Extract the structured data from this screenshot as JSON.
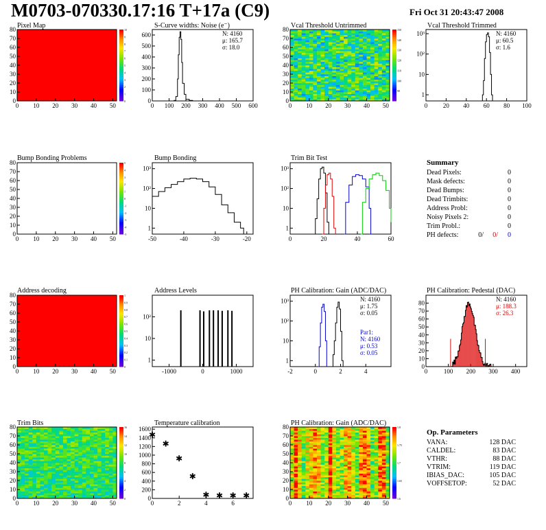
{
  "header": {
    "title": "M0703-070330.17:16 T+17a (C9)",
    "date": "Fri Oct 31 20:43:47 2008"
  },
  "summary": {
    "heading": "Summary",
    "rows": [
      {
        "label": "Dead Pixels:",
        "value": "0"
      },
      {
        "label": "Mask defects:",
        "value": "0"
      },
      {
        "label": "Dead Bumps:",
        "value": "0"
      },
      {
        "label": "Dead Trimbits:",
        "value": "0"
      },
      {
        "label": "Address Probl:",
        "value": "0"
      },
      {
        "label": "Noisy Pixels 2:",
        "value": "0"
      },
      {
        "label": "Trim Probl.:",
        "value": "0"
      }
    ],
    "ph_defects": {
      "label": "PH defects:",
      "values": [
        "0/",
        "0/",
        "0"
      ],
      "colors": [
        "#000000",
        "#cc0000",
        "#0000cc"
      ]
    }
  },
  "op_params": {
    "heading": "Op. Parameters",
    "rows": [
      {
        "label": "VANA:",
        "value": "128 DAC"
      },
      {
        "label": "CALDEL:",
        "value": "83 DAC"
      },
      {
        "label": "VTHR:",
        "value": "88 DAC"
      },
      {
        "label": "VTRIM:",
        "value": "119 DAC"
      },
      {
        "label": "IBIAS_DAC:",
        "value": "105 DAC"
      },
      {
        "label": "VOFFSETOP:",
        "value": "52 DAC"
      }
    ]
  },
  "chart_data": [
    {
      "id": "pixel-map",
      "type": "heatmap",
      "title": "Pixel Map",
      "fill": "uniform-red",
      "xlim": [
        0,
        52
      ],
      "ylim": [
        0,
        80
      ],
      "xticks": [
        0,
        10,
        20,
        30,
        40,
        50
      ],
      "yticks": [
        0,
        10,
        20,
        30,
        40,
        50,
        60,
        70,
        80
      ],
      "zlim": [
        0,
        10
      ],
      "zticks": [
        0,
        1,
        2,
        3,
        4,
        5,
        6,
        7,
        8,
        9,
        10
      ]
    },
    {
      "id": "scurve-noise",
      "type": "histogram",
      "title": "S-Curve widths: Noise (e⁻)",
      "log": false,
      "xlim": [
        0,
        600
      ],
      "ylim": [
        0,
        650
      ],
      "xticks": [
        0,
        100,
        200,
        300,
        400,
        500,
        600
      ],
      "yticks": [
        0,
        100,
        200,
        300,
        400,
        500,
        600
      ],
      "stats": [
        "N: 4160",
        "μ: 165.7",
        "σ: 18.0"
      ],
      "series": [
        {
          "color": "#000000",
          "points": [
            [
              120,
              0
            ],
            [
              130,
              5
            ],
            [
              140,
              40
            ],
            [
              150,
              200
            ],
            [
              155,
              420
            ],
            [
              160,
              580
            ],
            [
              165,
              630
            ],
            [
              170,
              560
            ],
            [
              175,
              350
            ],
            [
              180,
              160
            ],
            [
              190,
              60
            ],
            [
              200,
              15
            ],
            [
              220,
              5
            ],
            [
              240,
              0
            ]
          ]
        }
      ]
    },
    {
      "id": "vcal-untrimmed",
      "type": "heatmap",
      "title": "Vcal Threshold Untrimmed",
      "fill": "noise-green",
      "xlim": [
        0,
        52
      ],
      "ylim": [
        0,
        80
      ],
      "xticks": [
        0,
        10,
        20,
        30,
        40,
        50
      ],
      "yticks": [
        0,
        10,
        20,
        30,
        40,
        50,
        60,
        70,
        80
      ],
      "zlim": [
        80,
        150
      ],
      "zticks": [
        90,
        100,
        110,
        120,
        130,
        140,
        150
      ]
    },
    {
      "id": "vcal-trimmed",
      "type": "histogram",
      "title": "Vcal Threshold Trimmed",
      "log": true,
      "xlim": [
        0,
        100
      ],
      "ylim": [
        0.5,
        1600
      ],
      "xticks": [
        0,
        20,
        40,
        60,
        80,
        100
      ],
      "yticks": [
        1,
        10,
        100,
        1000
      ],
      "ytick_labels": [
        "1",
        "10",
        "10²",
        "10³"
      ],
      "stats": [
        "N: 4160",
        "μ: 60.5",
        "σ: 1.6"
      ],
      "series": [
        {
          "color": "#000000",
          "points": [
            [
              55,
              0.5
            ],
            [
              56,
              1
            ],
            [
              57,
              5
            ],
            [
              58,
              60
            ],
            [
              59,
              400
            ],
            [
              60,
              900
            ],
            [
              61,
              1100
            ],
            [
              62,
              700
            ],
            [
              63,
              120
            ],
            [
              64,
              10
            ],
            [
              65,
              1
            ],
            [
              66,
              0.5
            ]
          ]
        }
      ]
    },
    {
      "id": "bump-bonding-problems",
      "type": "heatmap",
      "title": "Bump Bonding Problems",
      "fill": "empty",
      "xlim": [
        0,
        52
      ],
      "ylim": [
        0,
        80
      ],
      "xticks": [
        0,
        10,
        20,
        30,
        40,
        50
      ],
      "yticks": [
        0,
        10,
        20,
        30,
        40,
        50,
        60,
        70,
        80
      ],
      "zlim": [
        -5,
        5
      ],
      "zticks": [
        -5,
        -4,
        -3,
        -2,
        -1,
        0,
        1,
        2,
        3,
        4,
        5
      ]
    },
    {
      "id": "bump-bonding",
      "type": "histogram",
      "title": "Bump Bonding",
      "log": true,
      "xlim": [
        -50,
        -18
      ],
      "ylim": [
        0.5,
        2000
      ],
      "xticks": [
        -50,
        -40,
        -30,
        -20
      ],
      "yticks": [
        1,
        10,
        100,
        1000
      ],
      "ytick_labels": [
        "1",
        "10",
        "10²",
        "10³"
      ],
      "series": [
        {
          "color": "#000000",
          "points": [
            [
              -50,
              40
            ],
            [
              -48,
              70
            ],
            [
              -46,
              110
            ],
            [
              -44,
              160
            ],
            [
              -42,
              220
            ],
            [
              -40,
              300
            ],
            [
              -38,
              330
            ],
            [
              -36,
              300
            ],
            [
              -34,
              220
            ],
            [
              -32,
              120
            ],
            [
              -30,
              50
            ],
            [
              -28,
              15
            ],
            [
              -26,
              6
            ],
            [
              -24,
              2
            ],
            [
              -22,
              1
            ],
            [
              -21,
              0.5
            ]
          ]
        }
      ]
    },
    {
      "id": "trim-bit-test",
      "type": "histogram",
      "title": "Trim Bit Test",
      "log": true,
      "xlim": [
        0,
        60
      ],
      "ylim": [
        0.5,
        2000
      ],
      "xticks": [
        0,
        20,
        40,
        60
      ],
      "yticks": [
        1,
        10,
        100,
        1000
      ],
      "ytick_labels": [
        "1",
        "10",
        "10²",
        "10³"
      ],
      "series": [
        {
          "color": "#000000",
          "points": [
            [
              14,
              0.5
            ],
            [
              15,
              3
            ],
            [
              16,
              30
            ],
            [
              17,
              300
            ],
            [
              18,
              1000
            ],
            [
              19,
              1200
            ],
            [
              20,
              600
            ],
            [
              21,
              60
            ],
            [
              22,
              2
            ],
            [
              23,
              0.5
            ]
          ]
        },
        {
          "color": "#dd0000",
          "points": [
            [
              19,
              0.5
            ],
            [
              20,
              10
            ],
            [
              21,
              150
            ],
            [
              22,
              500
            ],
            [
              23,
              600
            ],
            [
              24,
              300
            ],
            [
              25,
              40
            ],
            [
              26,
              1
            ],
            [
              27,
              0.5
            ]
          ]
        },
        {
          "color": "#0000cc",
          "points": [
            [
              32,
              0.5
            ],
            [
              33,
              20
            ],
            [
              35,
              150
            ],
            [
              37,
              400
            ],
            [
              39,
              500
            ],
            [
              41,
              450
            ],
            [
              43,
              300
            ],
            [
              45,
              120
            ],
            [
              47,
              10
            ],
            [
              48,
              0.5
            ]
          ]
        },
        {
          "color": "#00cc00",
          "points": [
            [
              42,
              0.5
            ],
            [
              43,
              20
            ],
            [
              45,
              100
            ],
            [
              47,
              300
            ],
            [
              49,
              500
            ],
            [
              51,
              600
            ],
            [
              53,
              450
            ],
            [
              55,
              250
            ],
            [
              57,
              80
            ],
            [
              59,
              10
            ],
            [
              60,
              2
            ]
          ]
        }
      ]
    },
    {
      "id": "address-decoding",
      "type": "heatmap",
      "title": "Address decoding",
      "fill": "uniform-red",
      "xlim": [
        0,
        52
      ],
      "ylim": [
        0,
        80
      ],
      "xticks": [
        0,
        10,
        20,
        30,
        40,
        50
      ],
      "yticks": [
        0,
        10,
        20,
        30,
        40,
        50,
        60,
        70,
        80
      ],
      "zlim": [
        0,
        1
      ],
      "zticks": [
        0,
        0.1,
        0.2,
        0.3,
        0.4,
        0.5,
        0.6,
        0.7,
        0.8,
        0.9,
        1
      ]
    },
    {
      "id": "address-levels",
      "type": "histogram",
      "title": "Address Levels",
      "log": true,
      "xlim": [
        -1500,
        1500
      ],
      "ylim": [
        0.5,
        1000
      ],
      "xticks": [
        -1000,
        0,
        1000
      ],
      "yticks": [
        1,
        10,
        100
      ],
      "ytick_labels": [
        "1",
        "10",
        "10²"
      ],
      "peaks": [
        -650,
        -80,
        30,
        200,
        320,
        460,
        580,
        750,
        870
      ],
      "peak_heights": [
        200,
        200,
        180,
        200,
        200,
        200,
        190,
        200,
        190
      ]
    },
    {
      "id": "ph-gain",
      "type": "histogram",
      "title": "PH Calibration: Gain (ADC/DAC)",
      "log": true,
      "xlim": [
        -2,
        6
      ],
      "ylim": [
        0.5,
        2000
      ],
      "xticks": [
        -2,
        0,
        2,
        4
      ],
      "yticks": [
        1,
        10,
        100,
        1000
      ],
      "ytick_labels": [
        "1",
        "10",
        "10²",
        "10³"
      ],
      "stats": [
        "N: 4160",
        "μ: 1.75",
        "σ: 0.05"
      ],
      "stats2": [
        "Par1:",
        "N: 4160",
        "μ: 0.53",
        "σ: 0.05"
      ],
      "series": [
        {
          "color": "#000000",
          "points": [
            [
              1.3,
              0.5
            ],
            [
              1.4,
              2
            ],
            [
              1.5,
              10
            ],
            [
              1.6,
              80
            ],
            [
              1.7,
              500
            ],
            [
              1.8,
              900
            ],
            [
              1.9,
              400
            ],
            [
              2.0,
              30
            ],
            [
              2.1,
              1
            ],
            [
              2.2,
              0.5
            ]
          ]
        },
        {
          "color": "#0000cc",
          "points": [
            [
              0.2,
              0.5
            ],
            [
              0.3,
              5
            ],
            [
              0.4,
              80
            ],
            [
              0.5,
              500
            ],
            [
              0.6,
              700
            ],
            [
              0.7,
              300
            ],
            [
              0.8,
              10
            ],
            [
              0.9,
              0.5
            ]
          ]
        }
      ]
    },
    {
      "id": "ph-pedestal",
      "type": "histogram",
      "title": "PH Calibration: Pedestal (DAC)",
      "log": false,
      "xlim": [
        0,
        450
      ],
      "ylim": [
        0,
        90
      ],
      "xticks": [
        0,
        100,
        200,
        300,
        400
      ],
      "yticks": [
        0,
        10,
        20,
        30,
        40,
        50,
        60,
        70,
        80
      ],
      "stats": [
        "N: 4160"
      ],
      "stats_red": [
        "μ: 188.3",
        "σ: 26.3"
      ],
      "markers": [
        110,
        265
      ]
    },
    {
      "id": "trim-bits",
      "type": "heatmap",
      "title": "Trim Bits",
      "fill": "noise-green2",
      "xlim": [
        0,
        52
      ],
      "ylim": [
        0,
        80
      ],
      "xticks": [
        0,
        10,
        20,
        30,
        40,
        50
      ],
      "yticks": [
        0,
        10,
        20,
        30,
        40,
        50,
        60,
        70,
        80
      ],
      "zlim": [
        0,
        16
      ],
      "zticks": [
        0,
        2,
        4,
        6,
        8,
        10,
        12,
        14,
        16
      ]
    },
    {
      "id": "temperature-calibration",
      "type": "scatter",
      "title": "Temperature calibration",
      "xlim": [
        0,
        7.5
      ],
      "ylim": [
        0,
        1650
      ],
      "xticks": [
        0,
        2,
        4,
        6
      ],
      "yticks": [
        0,
        200,
        400,
        600,
        800,
        1000,
        1200,
        1400,
        1600
      ],
      "x": [
        0,
        1,
        2,
        3,
        4,
        5,
        6,
        7
      ],
      "y": [
        1470,
        1260,
        920,
        510,
        80,
        60,
        60,
        60
      ]
    },
    {
      "id": "ph-gain-map",
      "type": "heatmap",
      "title": "PH Calibration: Gain (ADC/DAC)",
      "fill": "noise-red",
      "xlim": [
        0,
        52
      ],
      "ylim": [
        0,
        80
      ],
      "xticks": [
        0,
        10,
        20,
        30,
        40,
        50
      ],
      "yticks": [
        0,
        10,
        20,
        30,
        40,
        50,
        60,
        70,
        80
      ],
      "zlim": [
        1.6,
        1.8
      ],
      "zticks": [
        1.6,
        1.65,
        1.7,
        1.75,
        1.8
      ]
    }
  ]
}
